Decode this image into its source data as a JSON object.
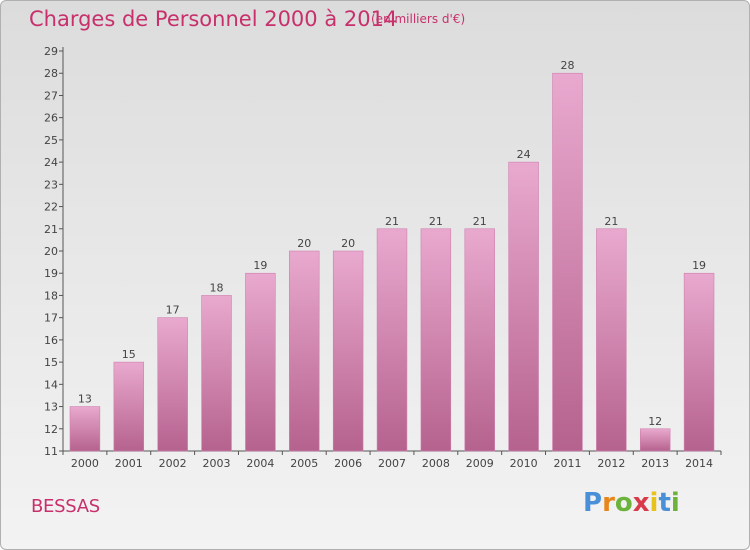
{
  "header": {
    "title": "Charges de Personnel 2000 à 2014",
    "unit": "(en milliers d'€)"
  },
  "footer": {
    "commune": "BESSAS",
    "logo_letters": [
      "P",
      "r",
      "o",
      "x",
      "i",
      "t",
      "i"
    ],
    "logo_colors": [
      "#4a90d9",
      "#e8861c",
      "#6bb33a",
      "#d93a4a",
      "#e8c21c",
      "#4a90d9",
      "#6bb33a"
    ]
  },
  "colors": {
    "bar_light": "#e9a9cf",
    "bar_dark": "#b5628e",
    "title": "#c8306b"
  },
  "chart_data": {
    "type": "bar",
    "title": "Charges de Personnel 2000 à 2014",
    "subtitle": "(en milliers d'€)",
    "categories": [
      "2000",
      "2001",
      "2002",
      "2003",
      "2004",
      "2005",
      "2006",
      "2007",
      "2008",
      "2009",
      "2010",
      "2011",
      "2012",
      "2013",
      "2014"
    ],
    "values": [
      13,
      15,
      17,
      18,
      19,
      20,
      20,
      21,
      21,
      21,
      24,
      28,
      21,
      12,
      19
    ],
    "ylim": [
      11,
      29
    ],
    "yticks": [
      11,
      12,
      13,
      14,
      15,
      16,
      17,
      18,
      19,
      20,
      21,
      22,
      23,
      24,
      25,
      26,
      27,
      28,
      29
    ],
    "grid": false,
    "data_labels": true
  }
}
